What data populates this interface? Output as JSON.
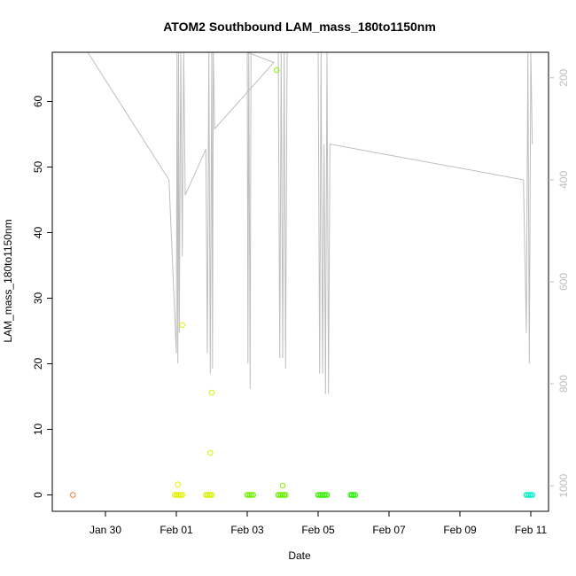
{
  "chart_data": {
    "type": "scatter",
    "title": "ATOM2 Southbound LAM_mass_180to1150nm",
    "xlabel": "Date",
    "ylabel": "LAM_mass_180to1150nm",
    "x_ticks": [
      "Jan 30",
      "Feb 01",
      "Feb 03",
      "Feb 05",
      "Feb 07",
      "Feb 09",
      "Feb 11"
    ],
    "y_ticks": [
      "0",
      "10",
      "20",
      "30",
      "40",
      "50",
      "60"
    ],
    "y2_ticks": [
      "200",
      "400",
      "600",
      "800",
      "1000"
    ],
    "xlim": [
      "2016-01-28T12:00",
      "2016-02-11T12:00"
    ],
    "ylim": [
      -2.5,
      67.5
    ],
    "y2lim": [
      1050,
      150
    ],
    "y2_reversed": true,
    "grid": false,
    "series": [
      {
        "values": [
          {
            "x": "2016-01-29T02:00",
            "y": 0,
            "color": "#e8803a"
          },
          {
            "x": "2016-01-31T23:00",
            "y": 0,
            "color": "#e2f000"
          },
          {
            "x": "2016-02-01T00:00",
            "y": 0,
            "color": "#e2f000"
          },
          {
            "x": "2016-02-01T01:00",
            "y": 0,
            "color": "#e2f000"
          },
          {
            "x": "2016-02-01T02:00",
            "y": 0,
            "color": "#e2f000"
          },
          {
            "x": "2016-02-01T03:00",
            "y": 0,
            "color": "#e2f000"
          },
          {
            "x": "2016-02-01T04:00",
            "y": 0,
            "color": "#e2f000"
          },
          {
            "x": "2016-02-01T01:00",
            "y": 1.6,
            "color": "#e2f000"
          },
          {
            "x": "2016-02-01T04:00",
            "y": 25.9,
            "color": "#e2f000"
          },
          {
            "x": "2016-02-01T20:00",
            "y": 0,
            "color": "#d8f000"
          },
          {
            "x": "2016-02-01T21:00",
            "y": 0,
            "color": "#d8f000"
          },
          {
            "x": "2016-02-01T22:00",
            "y": 0,
            "color": "#d8f000"
          },
          {
            "x": "2016-02-01T23:00",
            "y": 0,
            "color": "#d8f000"
          },
          {
            "x": "2016-02-02T00:00",
            "y": 0,
            "color": "#d8f000"
          },
          {
            "x": "2016-02-01T23:00",
            "y": 6.4,
            "color": "#d8f000"
          },
          {
            "x": "2016-02-02T00:00",
            "y": 15.6,
            "color": "#d8f000"
          },
          {
            "x": "2016-02-03T00:00",
            "y": 0,
            "color": "#70f000"
          },
          {
            "x": "2016-02-03T01:00",
            "y": 0,
            "color": "#70f000"
          },
          {
            "x": "2016-02-03T02:00",
            "y": 0,
            "color": "#70f000"
          },
          {
            "x": "2016-02-03T03:00",
            "y": 0,
            "color": "#70f000"
          },
          {
            "x": "2016-02-03T04:00",
            "y": 0,
            "color": "#70f000"
          },
          {
            "x": "2016-02-03T21:00",
            "y": 0,
            "color": "#66f000"
          },
          {
            "x": "2016-02-03T22:00",
            "y": 0,
            "color": "#66f000"
          },
          {
            "x": "2016-02-03T23:00",
            "y": 0,
            "color": "#66f000"
          },
          {
            "x": "2016-02-04T00:00",
            "y": 0,
            "color": "#66f000"
          },
          {
            "x": "2016-02-04T01:00",
            "y": 0,
            "color": "#66f000"
          },
          {
            "x": "2016-02-04T02:00",
            "y": 0,
            "color": "#66f000"
          },
          {
            "x": "2016-02-03T20:00",
            "y": 64.8,
            "color": "#8cf000"
          },
          {
            "x": "2016-02-04T00:00",
            "y": 1.4,
            "color": "#8cf000"
          },
          {
            "x": "2016-02-05T00:00",
            "y": 0,
            "color": "#38f000"
          },
          {
            "x": "2016-02-05T01:00",
            "y": 0,
            "color": "#38f000"
          },
          {
            "x": "2016-02-05T02:00",
            "y": 0,
            "color": "#38f000"
          },
          {
            "x": "2016-02-05T03:00",
            "y": 0,
            "color": "#38f000"
          },
          {
            "x": "2016-02-05T04:00",
            "y": 0,
            "color": "#38f000"
          },
          {
            "x": "2016-02-05T05:00",
            "y": 0,
            "color": "#38f000"
          },
          {
            "x": "2016-02-05T06:00",
            "y": 0,
            "color": "#38f000"
          },
          {
            "x": "2016-02-05T22:00",
            "y": 0,
            "color": "#20f000"
          },
          {
            "x": "2016-02-05T23:00",
            "y": 0,
            "color": "#20f000"
          },
          {
            "x": "2016-02-06T00:00",
            "y": 0,
            "color": "#20f000"
          },
          {
            "x": "2016-02-06T01:00",
            "y": 0,
            "color": "#20f000"
          },
          {
            "x": "2016-02-10T21:00",
            "y": 0,
            "color": "#00f0b0"
          },
          {
            "x": "2016-02-10T22:00",
            "y": 0,
            "color": "#00f0b8"
          },
          {
            "x": "2016-02-10T23:00",
            "y": 0,
            "color": "#00f0c0"
          },
          {
            "x": "2016-02-11T00:00",
            "y": 0,
            "color": "#00f0c8"
          },
          {
            "x": "2016-02-11T01:00",
            "y": 0,
            "color": "#00f0d0"
          }
        ]
      }
    ],
    "altitude_track": {
      "color": "#bebebe",
      "axis": "y2",
      "points": [
        [
          "2016-01-29T12:00",
          150
        ],
        [
          "2016-01-31T19:00",
          400
        ],
        [
          "2016-02-01T00:00",
          740
        ],
        [
          "2016-02-01T00:30",
          150
        ],
        [
          "2016-02-01T01:00",
          760
        ],
        [
          "2016-02-01T01:30",
          150
        ],
        [
          "2016-02-01T02:00",
          700
        ],
        [
          "2016-02-01T03:00",
          150
        ],
        [
          "2016-02-01T04:00",
          550
        ],
        [
          "2016-02-01T05:00",
          150
        ],
        [
          "2016-02-01T06:00",
          430
        ],
        [
          "2016-02-01T20:00",
          340
        ],
        [
          "2016-02-01T21:00",
          740
        ],
        [
          "2016-02-01T22:00",
          150
        ],
        [
          "2016-02-01T23:00",
          780
        ],
        [
          "2016-02-02T00:00",
          150
        ],
        [
          "2016-02-02T00:30",
          770
        ],
        [
          "2016-02-02T01:00",
          150
        ],
        [
          "2016-02-02T02:00",
          300
        ],
        [
          "2016-02-03T18:00",
          170
        ],
        [
          "2016-02-03T00:00",
          150
        ],
        [
          "2016-02-03T00:30",
          760
        ],
        [
          "2016-02-03T01:00",
          150
        ],
        [
          "2016-02-03T02:00",
          810
        ],
        [
          "2016-02-03T02:30",
          150
        ],
        [
          "2016-02-03T21:00",
          150
        ],
        [
          "2016-02-03T22:00",
          750
        ],
        [
          "2016-02-03T23:00",
          150
        ],
        [
          "2016-02-04T00:00",
          750
        ],
        [
          "2016-02-04T01:00",
          150
        ],
        [
          "2016-02-04T02:00",
          770
        ],
        [
          "2016-02-04T03:00",
          150
        ],
        [
          "2016-02-04T04:00",
          150
        ],
        [
          "2016-02-05T00:00",
          150
        ],
        [
          "2016-02-05T01:00",
          780
        ],
        [
          "2016-02-05T02:00",
          150
        ],
        [
          "2016-02-05T03:00",
          780
        ],
        [
          "2016-02-05T04:00",
          330
        ],
        [
          "2016-02-05T05:00",
          820
        ],
        [
          "2016-02-05T06:00",
          150
        ],
        [
          "2016-02-05T07:00",
          820
        ],
        [
          "2016-02-05T08:00",
          330
        ],
        [
          "2016-02-10T19:00",
          400
        ],
        [
          "2016-02-10T21:00",
          700
        ],
        [
          "2016-02-10T22:00",
          150
        ],
        [
          "2016-02-10T23:00",
          760
        ],
        [
          "2016-02-11T00:00",
          150
        ],
        [
          "2016-02-11T01:00",
          330
        ]
      ]
    }
  }
}
